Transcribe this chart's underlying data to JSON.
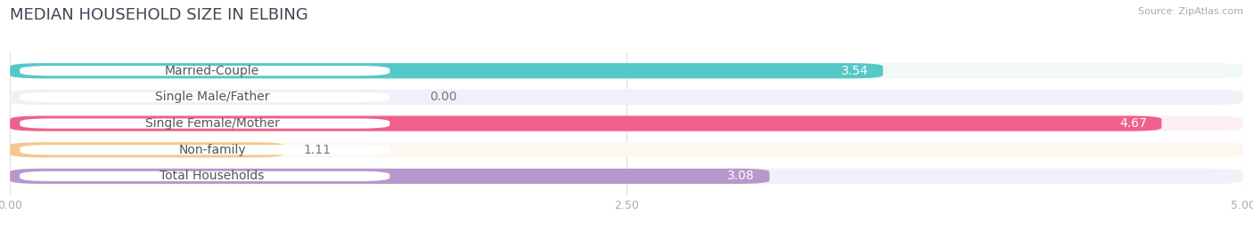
{
  "title": "MEDIAN HOUSEHOLD SIZE IN ELBING",
  "source": "Source: ZipAtlas.com",
  "categories": [
    "Married-Couple",
    "Single Male/Father",
    "Single Female/Mother",
    "Non-family",
    "Total Households"
  ],
  "values": [
    3.54,
    0.0,
    4.67,
    1.11,
    3.08
  ],
  "bar_colors": [
    "#55c8c8",
    "#9db8e8",
    "#f0608c",
    "#f5c890",
    "#b898cc"
  ],
  "bg_colors": [
    "#f0f8f8",
    "#f0f0f8",
    "#fdf0f5",
    "#fdf7f0",
    "#f5f0f8"
  ],
  "xlim": [
    0,
    5.0
  ],
  "xticks": [
    0.0,
    2.5,
    5.0
  ],
  "xtick_labels": [
    "0.00",
    "2.50",
    "5.00"
  ],
  "title_fontsize": 13,
  "label_fontsize": 10,
  "value_fontsize": 10,
  "bar_height": 0.58,
  "background_color": "#ffffff"
}
